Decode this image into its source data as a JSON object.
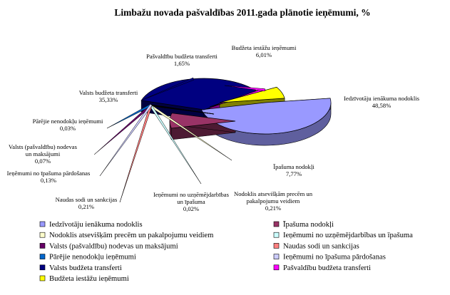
{
  "chart_data": {
    "type": "pie",
    "title": "Limbažu novada pašvaldības 2011.gada plānotie ieņēmumi, %",
    "slices": [
      {
        "name": "Iedzīvotāju ienākuma nodoklis",
        "value": 48.58,
        "label": "48,58%",
        "color": "#9999ff"
      },
      {
        "name": "Īpašuma nodokļi",
        "value": 7.77,
        "label": "7,77%",
        "color": "#993366"
      },
      {
        "name": "Nodoklis atsevišķām precēm un pakalpojumu veidiem",
        "value": 0.21,
        "label": "0,21%",
        "color": "#ffffcc"
      },
      {
        "name": "Ieņēmumi no uzņēmējdarbības un īpašuma",
        "value": 0.02,
        "label": "0,02%",
        "color": "#ccffff"
      },
      {
        "name": "Valsts (pašvaldību) nodevas un maksājumi",
        "value": 0.07,
        "label": "0,07%",
        "color": "#660066"
      },
      {
        "name": "Naudas sodi un sankcijas",
        "value": 0.21,
        "label": "0,21%",
        "color": "#ff8080"
      },
      {
        "name": "Pārējie nenodokļu ieņēmumi",
        "value": 0.03,
        "label": "0,03%",
        "color": "#0066cc"
      },
      {
        "name": "Ieņēmumi no īpašuma pārdošanas",
        "value": 0.13,
        "label": "0,13%",
        "color": "#ccccff"
      },
      {
        "name": "Valsts budžeta transferti",
        "value": 35.33,
        "label": "35,33%",
        "color": "#000080"
      },
      {
        "name": "Pašvaldību budžeta transferti",
        "value": 1.65,
        "label": "1,65%",
        "color": "#ff00ff"
      },
      {
        "name": "Budžeta iestāžu ieņēmumi",
        "value": 6.01,
        "label": "6,01%",
        "color": "#ffff00"
      }
    ],
    "legend": {
      "placement": "bottom",
      "columns": 2,
      "order": [
        [
          "Iedzīvotāju ienākuma nodoklis",
          "Īpašuma nodokļi"
        ],
        [
          "Nodoklis atsevišķām precēm un pakalpojumu veidiem",
          "Ieņēmumi no uzņēmējdarbības un īpašuma"
        ],
        [
          "Valsts (pašvaldību) nodevas un maksājumi",
          "Naudas sodi un sankcijas"
        ],
        [
          "Pārējie nenodokļu ieņēmumi",
          "Ieņēmumi no īpašuma pārdošanas"
        ],
        [
          "Valsts budžeta transferti",
          "Pašvaldību budžeta transferti"
        ],
        [
          "Budžeta iestāžu ieņēmumi"
        ]
      ]
    }
  }
}
